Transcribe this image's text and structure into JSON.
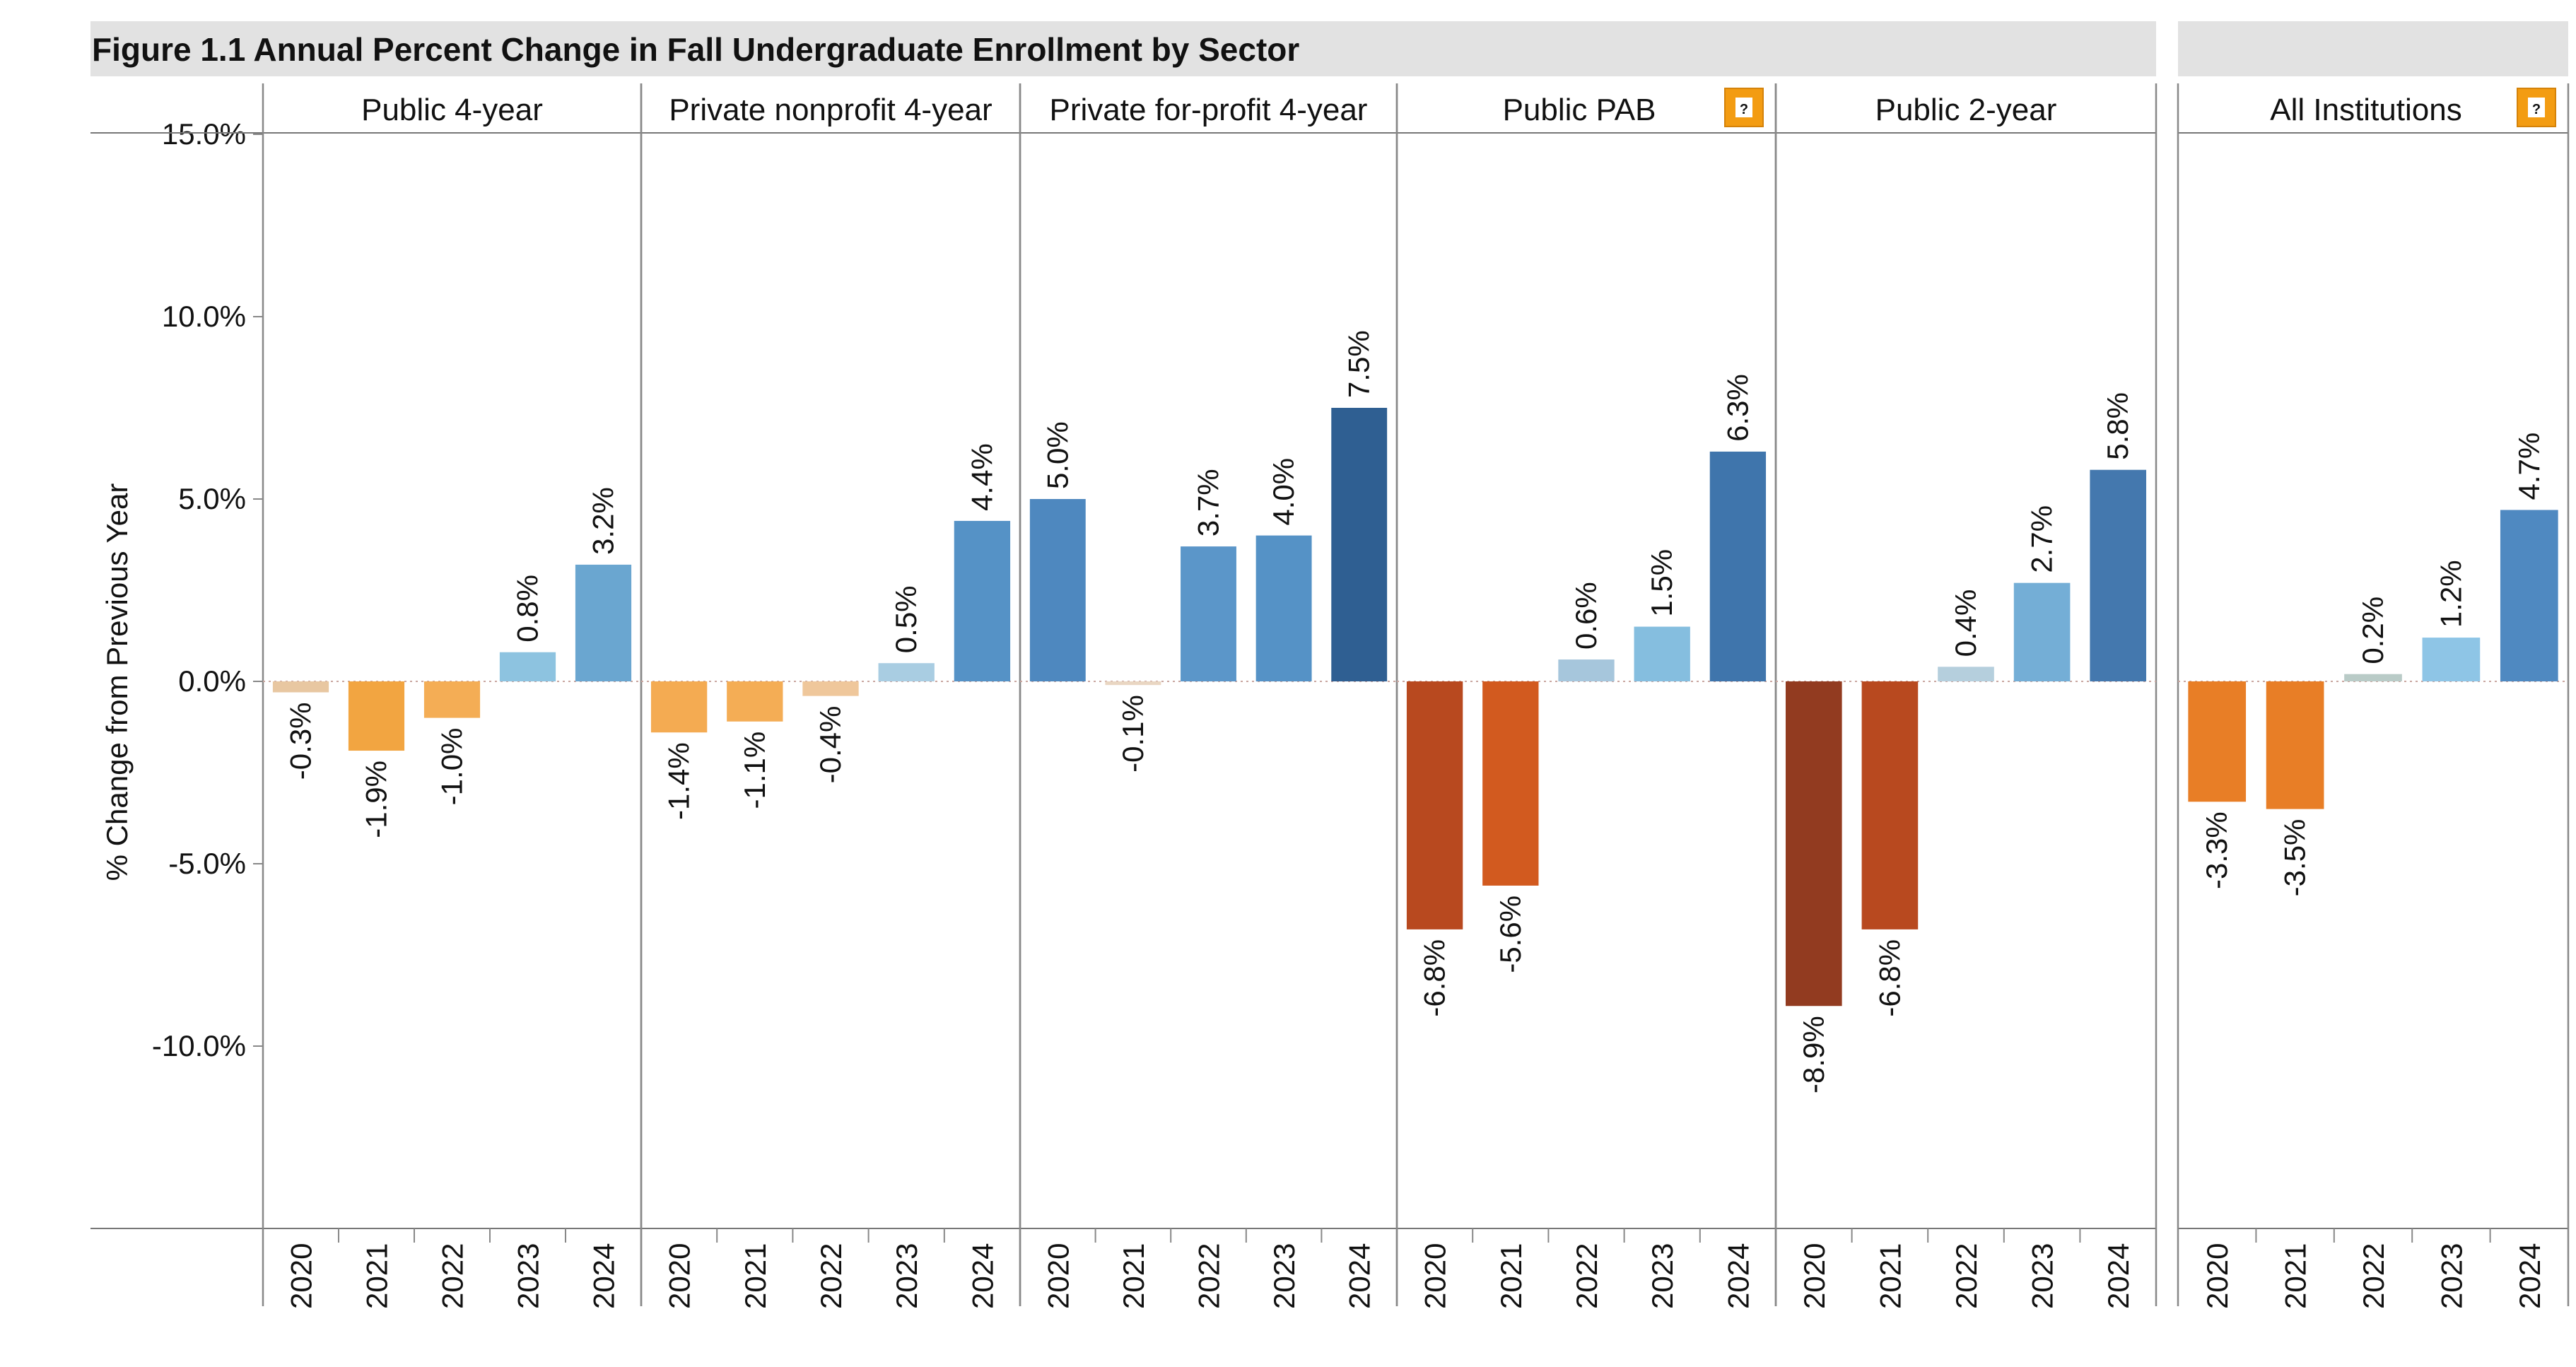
{
  "title": "Figure 1.1 Annual Percent Change in Fall Undergraduate Enrollment by Sector",
  "help_icon": "help-icon",
  "chart_data": {
    "type": "bar",
    "title": "Figure 1.1 Annual Percent Change in Fall Undergraduate Enrollment by Sector",
    "ylabel": "% Change from Previous Year",
    "xlabel": "",
    "ylim": [
      -15,
      15
    ],
    "yticks": [
      "15.0%",
      "10.0%",
      "5.0%",
      "0.0%",
      "-5.0%",
      "-10.0%"
    ],
    "ytick_values": [
      15,
      10,
      5,
      0,
      -5,
      -10
    ],
    "categories": [
      "2020",
      "2021",
      "2022",
      "2023",
      "2024"
    ],
    "grid": false,
    "legend": "none",
    "panels": [
      {
        "name": "Public 4-year",
        "values": [
          -0.3,
          -1.9,
          -1.0,
          0.8,
          3.2
        ],
        "labels": [
          "-0.3%",
          "-1.9%",
          "-1.0%",
          "0.8%",
          "3.2%"
        ],
        "colors": [
          "#e8c7a1",
          "#f2a541",
          "#f4ad55",
          "#8dc3e0",
          "#6aa6d0"
        ],
        "has_help": false
      },
      {
        "name": "Private nonprofit 4-year",
        "values": [
          -1.4,
          -1.1,
          -0.4,
          0.5,
          4.4
        ],
        "labels": [
          "-1.4%",
          "-1.1%",
          "-0.4%",
          "0.5%",
          "4.4%"
        ],
        "colors": [
          "#f4ab52",
          "#f4ad55",
          "#efc79b",
          "#a9cde2",
          "#5592c6"
        ],
        "has_help": false
      },
      {
        "name": "Private for-profit 4-year",
        "values": [
          5.0,
          -0.1,
          3.7,
          4.0,
          7.5
        ],
        "labels": [
          "5.0%",
          "-0.1%",
          "3.7%",
          "4.0%",
          "7.5%"
        ],
        "colors": [
          "#4e88bf",
          "#e9d6c2",
          "#5b96c9",
          "#5592c6",
          "#2f5f92"
        ],
        "has_help": false
      },
      {
        "name": "Public PAB",
        "values": [
          -6.8,
          -5.6,
          0.6,
          1.5,
          6.3
        ],
        "labels": [
          "-6.8%",
          "-5.6%",
          "0.6%",
          "1.5%",
          "6.3%"
        ],
        "colors": [
          "#b8491f",
          "#d25a1f",
          "#a6c6dc",
          "#85bedf",
          "#3f75ac"
        ],
        "has_help": true
      },
      {
        "name": "Public 2-year",
        "values": [
          -8.9,
          -6.8,
          0.4,
          2.7,
          5.8
        ],
        "labels": [
          "-8.9%",
          "-6.8%",
          "0.4%",
          "2.7%",
          "5.8%"
        ],
        "colors": [
          "#923b20",
          "#b8491f",
          "#b5cfdd",
          "#74aed6",
          "#4478ae"
        ],
        "has_help": false
      },
      {
        "name": "All Institutions",
        "values": [
          -3.3,
          -3.5,
          0.2,
          1.2,
          4.7
        ],
        "labels": [
          "-3.3%",
          "-3.5%",
          "0.2%",
          "1.2%",
          "4.7%"
        ],
        "colors": [
          "#e87e26",
          "#e87e26",
          "#b9cbc7",
          "#8ec5e6",
          "#4f89c1"
        ],
        "has_help": true
      }
    ]
  }
}
